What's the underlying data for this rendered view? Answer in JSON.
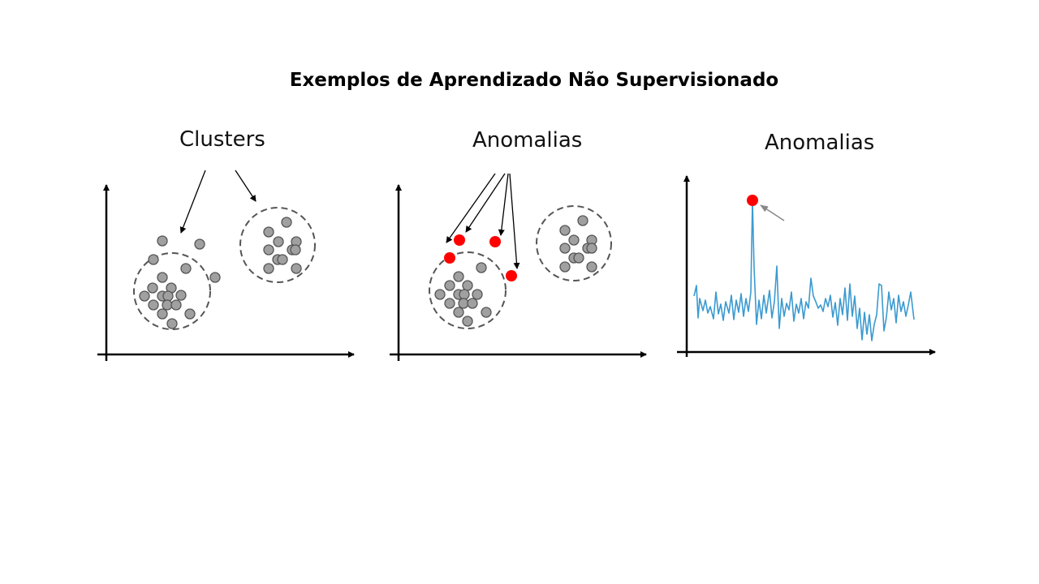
{
  "slide": {
    "title": "Exemplos de Aprendizado Não Supervisionado"
  },
  "panels": [
    {
      "label": "Clusters"
    },
    {
      "label": "Anomalias"
    },
    {
      "label": "Anomalias"
    }
  ],
  "colors": {
    "point": "#a0a0a0",
    "anomaly": "#ff0000",
    "line": "#3b9ad0",
    "axis": "#000000"
  }
}
